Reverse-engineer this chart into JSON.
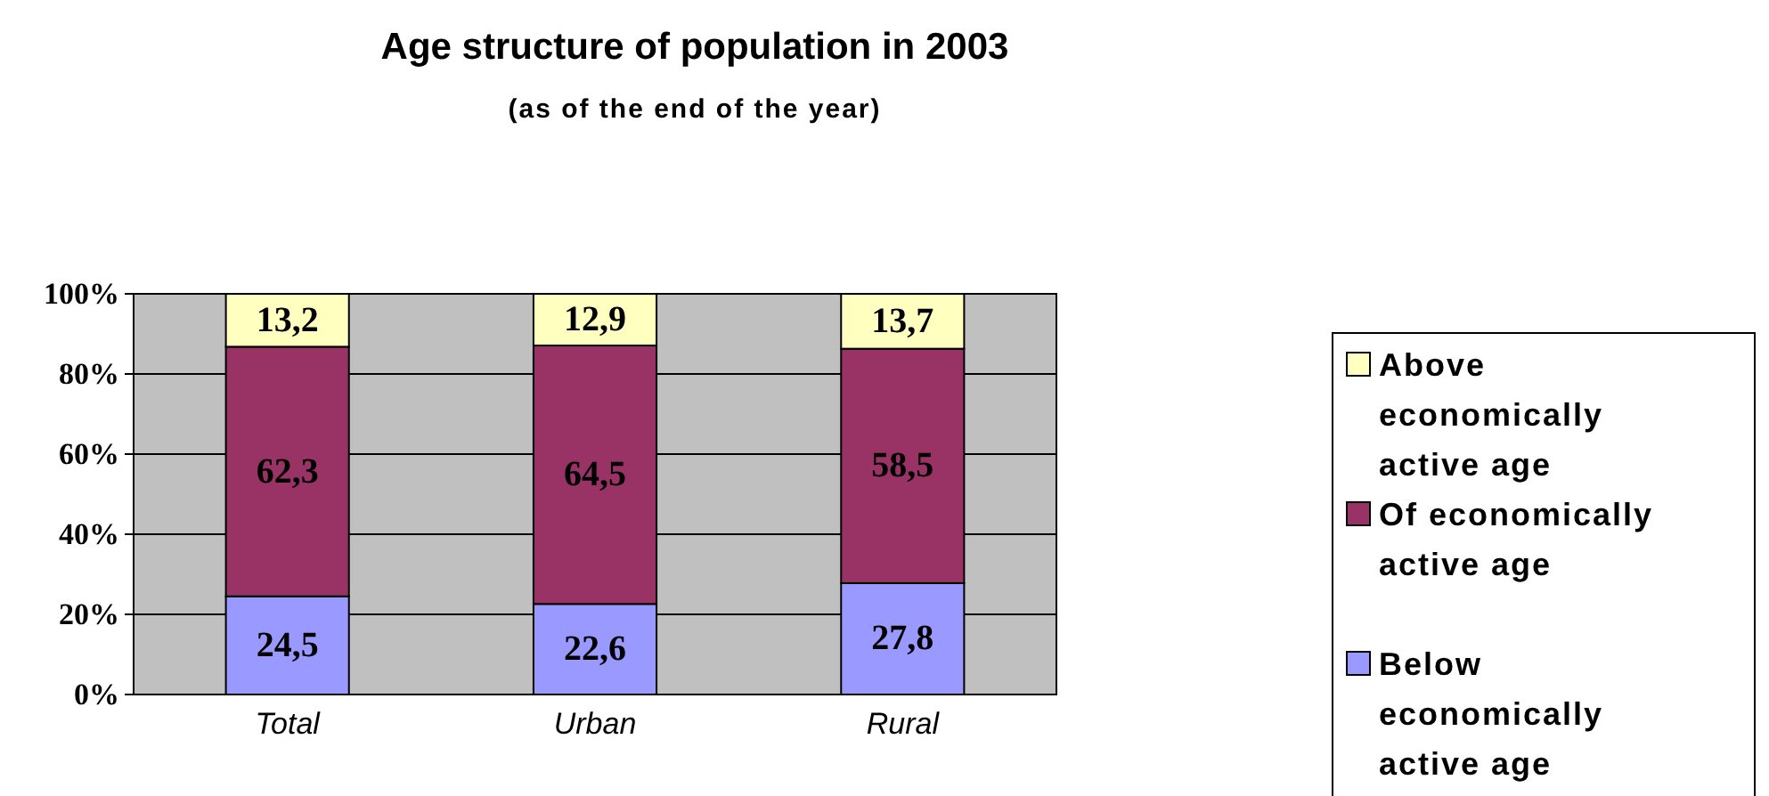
{
  "chart_data": {
    "type": "bar",
    "title": "Age structure of population in 2003",
    "subtitle": "(as of the end of the year)",
    "categories": [
      "Total",
      "Urban",
      "Rural"
    ],
    "series": [
      {
        "name": "Below economically active age",
        "color": "#9999ff",
        "values": [
          24.5,
          22.6,
          27.8
        ],
        "value_labels": [
          "24,5",
          "22,6",
          "27,8"
        ]
      },
      {
        "name": "Of economically active age",
        "color": "#993366",
        "values": [
          62.3,
          64.5,
          58.5
        ],
        "value_labels": [
          "62,3",
          "64,5",
          "58,5"
        ]
      },
      {
        "name": "Above economically active age",
        "color": "#ffffc0",
        "values": [
          13.2,
          12.9,
          13.7
        ],
        "value_labels": [
          "13,2",
          "12,9",
          "13,7"
        ]
      }
    ],
    "stacked": true,
    "ylim": [
      0,
      100
    ],
    "yticks": [
      {
        "value": 0,
        "label": "0%"
      },
      {
        "value": 20,
        "label": "20%"
      },
      {
        "value": 40,
        "label": "40%"
      },
      {
        "value": 60,
        "label": "60%"
      },
      {
        "value": 80,
        "label": "80%"
      },
      {
        "value": 100,
        "label": "100%"
      }
    ],
    "grid": "y",
    "legend": "right"
  }
}
